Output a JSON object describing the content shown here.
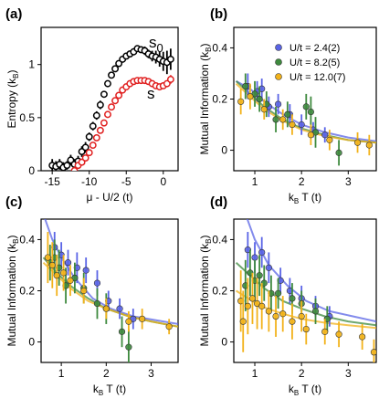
{
  "colors": {
    "blue": "#5a64e6",
    "green": "#3e8a3e",
    "yellow": "#f2b21a",
    "black": "#000000",
    "red": "#e01f1f"
  },
  "chart_data": [
    {
      "panel": "(a)",
      "type": "scatter",
      "xlabel": "μ - U/2 (t)",
      "ylabel": "Entropy (k_B)",
      "xticks": [
        "-15",
        "-10",
        "-5",
        "0"
      ],
      "yticks": [
        "0",
        "0.5",
        "1"
      ],
      "xlim": [
        -16.5,
        2
      ],
      "ylim": [
        0,
        1.35
      ],
      "annotations": [
        {
          "text": "s",
          "sub": "0",
          "color": "#000000"
        },
        {
          "text": "s",
          "sub": "",
          "color": "#e01f1f"
        }
      ],
      "series": [
        {
          "name": "s_0",
          "color": "#000000",
          "x": [
            -15.0,
            -14.5,
            -14.0,
            -13.5,
            -13.0,
            -12.5,
            -12.0,
            -11.5,
            -11.0,
            -10.5,
            -10.0,
            -9.5,
            -9.0,
            -8.5,
            -8.0,
            -7.5,
            -7.0,
            -6.5,
            -6.0,
            -5.5,
            -5.0,
            -4.5,
            -4.0,
            -3.5,
            -3.0,
            -2.5,
            -2.0,
            -1.5,
            -1.0,
            -0.5,
            0.0,
            0.5,
            1.0
          ],
          "y": [
            0.05,
            0.04,
            0.06,
            0.03,
            0.05,
            0.1,
            0.06,
            0.09,
            0.18,
            0.22,
            0.32,
            0.42,
            0.52,
            0.62,
            0.72,
            0.82,
            0.9,
            0.96,
            1.01,
            1.05,
            1.08,
            1.1,
            1.12,
            1.15,
            1.14,
            1.13,
            1.1,
            1.08,
            1.07,
            1.05,
            1.03,
            1.02,
            1.05
          ],
          "err": [
            0.06,
            0.05,
            0.05,
            0.05,
            0.04,
            0.05,
            0.05,
            0.05,
            0.05,
            0.05,
            0.04,
            0.04,
            0.04,
            0.04,
            0.03,
            0.03,
            0.03,
            0.03,
            0.03,
            0.03,
            0.03,
            0.03,
            0.03,
            0.03,
            0.03,
            0.04,
            0.04,
            0.05,
            0.06,
            0.07,
            0.09,
            0.11,
            0.1
          ]
        },
        {
          "name": "s",
          "color": "#e01f1f",
          "x": [
            -12.0,
            -11.5,
            -11.0,
            -10.5,
            -10.0,
            -9.5,
            -9.0,
            -8.5,
            -8.0,
            -7.5,
            -7.0,
            -6.5,
            -6.0,
            -5.5,
            -5.0,
            -4.5,
            -4.0,
            -3.5,
            -3.0,
            -2.5,
            -2.0,
            -1.5,
            -1.0,
            -0.5,
            0.0,
            0.5,
            1.0
          ],
          "y": [
            0.0,
            0.05,
            0.08,
            0.12,
            0.17,
            0.24,
            0.31,
            0.38,
            0.45,
            0.53,
            0.6,
            0.66,
            0.71,
            0.76,
            0.79,
            0.82,
            0.84,
            0.85,
            0.85,
            0.85,
            0.84,
            0.82,
            0.8,
            0.79,
            0.8,
            0.82,
            0.86
          ],
          "err": [
            0.02,
            0.02,
            0.02,
            0.02,
            0.02,
            0.02,
            0.02,
            0.02,
            0.02,
            0.02,
            0.02,
            0.02,
            0.02,
            0.02,
            0.02,
            0.02,
            0.02,
            0.02,
            0.02,
            0.02,
            0.02,
            0.02,
            0.02,
            0.02,
            0.02,
            0.03,
            0.04
          ]
        }
      ]
    },
    {
      "panel": "(b)",
      "type": "scatter",
      "xlabel": "k_B T (t)",
      "ylabel": "Mutual Information (k_B)",
      "xticks": [
        "1",
        "2",
        "3"
      ],
      "yticks": [
        "0",
        "0.2",
        "0.4"
      ],
      "xlim": [
        0.55,
        3.6
      ],
      "ylim": [
        -0.08,
        0.48
      ],
      "legend": [
        "U/t = 2.4(2)",
        "U/t = 8.2(5)",
        "U/t = 12.0(7)"
      ],
      "series": [
        {
          "name": "U/t = 2.4(2)",
          "color": "#5a64e6",
          "x": [
            0.85,
            1.05,
            1.15,
            1.3,
            1.5,
            1.75,
            2.0,
            2.25,
            2.5
          ],
          "y": [
            0.25,
            0.23,
            0.24,
            0.17,
            0.18,
            0.14,
            0.1,
            0.08,
            0.06
          ],
          "err": [
            0.05,
            0.04,
            0.04,
            0.04,
            0.04,
            0.04,
            0.04,
            0.03,
            0.03
          ],
          "fit": [
            [
              0.6,
              0.27
            ],
            [
              0.9,
              0.24
            ],
            [
              1.2,
              0.19
            ],
            [
              1.6,
              0.14
            ],
            [
              2.0,
              0.1
            ],
            [
              2.5,
              0.07
            ],
            [
              3.0,
              0.05
            ],
            [
              3.6,
              0.035
            ]
          ]
        },
        {
          "name": "U/t = 8.2(5)",
          "color": "#3e8a3e",
          "x": [
            0.8,
            1.0,
            1.1,
            1.25,
            1.45,
            1.7,
            2.1,
            2.2,
            2.3,
            2.8
          ],
          "y": [
            0.25,
            0.22,
            0.2,
            0.18,
            0.12,
            0.14,
            0.17,
            0.15,
            0.07,
            -0.01
          ],
          "err": [
            0.05,
            0.05,
            0.05,
            0.05,
            0.05,
            0.05,
            0.05,
            0.06,
            0.06,
            0.05
          ],
          "fit": [
            [
              0.6,
              0.27
            ],
            [
              0.9,
              0.22
            ],
            [
              1.2,
              0.17
            ],
            [
              1.6,
              0.12
            ],
            [
              2.0,
              0.085
            ],
            [
              2.5,
              0.06
            ],
            [
              3.0,
              0.04
            ],
            [
              3.6,
              0.03
            ]
          ]
        },
        {
          "name": "U/t = 12.0(7)",
          "color": "#f2b21a",
          "x": [
            0.7,
            0.9,
            1.2,
            1.6,
            1.8,
            2.2,
            2.6,
            3.2,
            3.45
          ],
          "y": [
            0.19,
            0.21,
            0.16,
            0.12,
            0.1,
            0.06,
            0.04,
            0.03,
            0.02
          ],
          "err": [
            0.05,
            0.05,
            0.04,
            0.04,
            0.04,
            0.04,
            0.04,
            0.04,
            0.04
          ],
          "fit": [
            [
              0.6,
              0.26
            ],
            [
              0.9,
              0.21
            ],
            [
              1.2,
              0.16
            ],
            [
              1.6,
              0.115
            ],
            [
              2.0,
              0.08
            ],
            [
              2.5,
              0.055
            ],
            [
              3.0,
              0.04
            ],
            [
              3.6,
              0.03
            ]
          ]
        }
      ]
    },
    {
      "panel": "(c)",
      "type": "scatter",
      "xlabel": "k_B T (t)",
      "ylabel": "Mutual Information (k_B)",
      "xticks": [
        "1",
        "2",
        "3"
      ],
      "yticks": [
        "0",
        "0.2",
        "0.4"
      ],
      "xlim": [
        0.55,
        3.6
      ],
      "ylim": [
        -0.08,
        0.48
      ],
      "series": [
        {
          "name": "U/t = 2.4(2)",
          "color": "#5a64e6",
          "x": [
            0.85,
            1.0,
            1.15,
            1.35,
            1.55,
            1.8,
            2.05,
            2.3,
            2.6
          ],
          "y": [
            0.37,
            0.34,
            0.31,
            0.29,
            0.28,
            0.23,
            0.16,
            0.13,
            0.09
          ],
          "err": [
            0.06,
            0.05,
            0.05,
            0.06,
            0.05,
            0.05,
            0.04,
            0.04,
            0.04
          ],
          "fit": [
            [
              0.62,
              0.49
            ],
            [
              0.8,
              0.4
            ],
            [
              1.0,
              0.33
            ],
            [
              1.3,
              0.25
            ],
            [
              1.7,
              0.17
            ],
            [
              2.1,
              0.13
            ],
            [
              2.6,
              0.1
            ],
            [
              3.6,
              0.07
            ]
          ]
        },
        {
          "name": "U/t = 8.2(5)",
          "color": "#3e8a3e",
          "x": [
            0.75,
            0.85,
            0.95,
            1.1,
            1.3,
            1.5,
            1.8,
            2.0,
            2.35,
            2.5
          ],
          "y": [
            0.31,
            0.33,
            0.29,
            0.22,
            0.25,
            0.21,
            0.15,
            0.13,
            0.04,
            -0.02
          ],
          "err": [
            0.07,
            0.07,
            0.07,
            0.07,
            0.06,
            0.06,
            0.06,
            0.06,
            0.06,
            0.07
          ],
          "fit": [
            [
              0.6,
              0.33
            ],
            [
              0.9,
              0.27
            ],
            [
              1.2,
              0.22
            ],
            [
              1.6,
              0.17
            ],
            [
              2.0,
              0.13
            ],
            [
              2.5,
              0.1
            ],
            [
              3.0,
              0.08
            ],
            [
              3.6,
              0.06
            ]
          ]
        },
        {
          "name": "U/t = 12.0(7)",
          "color": "#f2b21a",
          "x": [
            0.7,
            0.8,
            0.9,
            1.05,
            1.2,
            1.5,
            2.0,
            2.5,
            2.8,
            3.4
          ],
          "y": [
            0.33,
            0.3,
            0.26,
            0.27,
            0.24,
            0.2,
            0.13,
            0.08,
            0.09,
            0.06
          ],
          "err": [
            0.1,
            0.09,
            0.08,
            0.07,
            0.06,
            0.05,
            0.04,
            0.04,
            0.04,
            0.03
          ],
          "fit": [
            [
              0.6,
              0.31
            ],
            [
              0.9,
              0.26
            ],
            [
              1.2,
              0.21
            ],
            [
              1.6,
              0.16
            ],
            [
              2.0,
              0.13
            ],
            [
              2.5,
              0.1
            ],
            [
              3.0,
              0.08
            ],
            [
              3.6,
              0.06
            ]
          ]
        }
      ]
    },
    {
      "panel": "(d)",
      "type": "scatter",
      "xlabel": "k_B T (t)",
      "ylabel": "Mutual Information (k_B)",
      "xticks": [
        "1",
        "2",
        "3"
      ],
      "yticks": [
        "0",
        "0.2",
        "0.4"
      ],
      "xlim": [
        0.55,
        3.6
      ],
      "ylim": [
        -0.08,
        0.48
      ],
      "series": [
        {
          "name": "U/t = 2.4(2)",
          "color": "#5a64e6",
          "x": [
            0.85,
            1.0,
            1.15,
            1.3,
            1.55,
            1.75,
            2.0,
            2.3,
            2.6
          ],
          "y": [
            0.36,
            0.33,
            0.35,
            0.29,
            0.24,
            0.2,
            0.17,
            0.14,
            0.1
          ],
          "err": [
            0.07,
            0.06,
            0.06,
            0.06,
            0.05,
            0.05,
            0.05,
            0.04,
            0.04
          ],
          "fit": [
            [
              0.82,
              0.49
            ],
            [
              1.0,
              0.4
            ],
            [
              1.3,
              0.3
            ],
            [
              1.7,
              0.22
            ],
            [
              2.1,
              0.16
            ],
            [
              2.6,
              0.12
            ],
            [
              3.1,
              0.1
            ],
            [
              3.6,
              0.08
            ]
          ]
        },
        {
          "name": "U/t = 8.2(5)",
          "color": "#3e8a3e",
          "x": [
            0.8,
            0.9,
            1.0,
            1.1,
            1.2,
            1.35,
            1.5,
            1.8,
            2.0,
            2.3,
            2.55
          ],
          "y": [
            0.22,
            0.27,
            0.24,
            0.26,
            0.23,
            0.19,
            0.19,
            0.17,
            0.15,
            0.12,
            0.09
          ],
          "err": [
            0.1,
            0.09,
            0.08,
            0.08,
            0.07,
            0.07,
            0.06,
            0.06,
            0.05,
            0.05,
            0.05
          ],
          "fit": [
            [
              0.6,
              0.31
            ],
            [
              0.9,
              0.26
            ],
            [
              1.2,
              0.21
            ],
            [
              1.6,
              0.16
            ],
            [
              2.0,
              0.13
            ],
            [
              2.5,
              0.1
            ],
            [
              3.0,
              0.08
            ],
            [
              3.6,
              0.065
            ]
          ]
        },
        {
          "name": "U/t = 12.0(7)",
          "color": "#f2b21a",
          "x": [
            0.7,
            0.75,
            0.85,
            0.95,
            1.05,
            1.15,
            1.3,
            1.45,
            1.6,
            1.8,
            2.0,
            2.1,
            2.5,
            2.8,
            3.3,
            3.55
          ],
          "y": [
            0.16,
            0.08,
            0.14,
            0.17,
            0.15,
            0.14,
            0.12,
            0.1,
            0.11,
            0.08,
            0.1,
            0.05,
            0.04,
            0.03,
            0.02,
            -0.04
          ],
          "err": [
            0.12,
            0.12,
            0.11,
            0.1,
            0.1,
            0.09,
            0.08,
            0.08,
            0.07,
            0.07,
            0.06,
            0.06,
            0.05,
            0.05,
            0.05,
            0.05
          ],
          "fit": [
            [
              0.6,
              0.2
            ],
            [
              0.9,
              0.165
            ],
            [
              1.2,
              0.135
            ],
            [
              1.6,
              0.11
            ],
            [
              2.0,
              0.09
            ],
            [
              2.5,
              0.075
            ],
            [
              3.0,
              0.065
            ],
            [
              3.6,
              0.055
            ]
          ]
        }
      ]
    }
  ]
}
